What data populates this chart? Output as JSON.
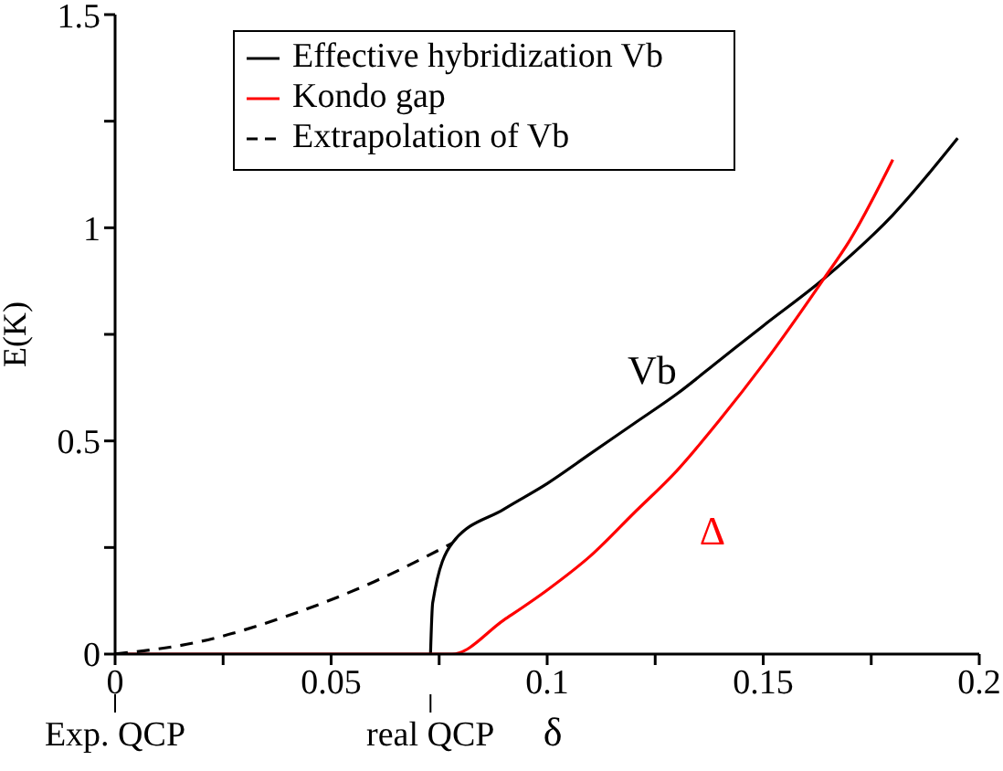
{
  "chart_data": {
    "type": "line",
    "xlabel": "δ",
    "ylabel": "E(K)",
    "xlim": [
      0,
      0.2
    ],
    "ylim": [
      0,
      1.5
    ],
    "xticks": [
      0,
      {
        "value": 0.025,
        "label": null
      },
      0.05,
      {
        "value": 0.075,
        "label": null
      },
      0.1,
      {
        "value": 0.125,
        "label": null
      },
      0.15,
      {
        "value": 0.175,
        "label": null
      },
      0.2
    ],
    "yticks": [
      0,
      {
        "value": 0.25,
        "label": null
      },
      0.5,
      {
        "value": 0.75,
        "label": null
      },
      1,
      {
        "value": 1.25,
        "label": null
      },
      1.5
    ],
    "grid": false,
    "legend": "top",
    "marker": "none",
    "series": [
      {
        "name": "Effective hybridization Vb",
        "color": "#000000",
        "line_style": "solid",
        "x": [
          0.073,
          0.0735,
          0.078,
          0.09,
          0.1,
          0.11,
          0.12,
          0.13,
          0.14,
          0.15,
          0.164,
          0.18,
          0.195
        ],
        "values": [
          0,
          0.12,
          0.26,
          0.34,
          0.4,
          0.47,
          0.54,
          0.61,
          0.69,
          0.77,
          0.88,
          1.03,
          1.21
        ]
      },
      {
        "name": "Kondo gap",
        "color": "#ff0000",
        "line_style": "solid",
        "x": [
          0,
          0.078,
          0.09,
          0.1,
          0.11,
          0.12,
          0.13,
          0.14,
          0.15,
          0.164,
          0.17,
          0.18
        ],
        "values": [
          0,
          0,
          0.08,
          0.15,
          0.23,
          0.33,
          0.43,
          0.55,
          0.68,
          0.88,
          0.97,
          1.16
        ]
      },
      {
        "name": "Extrapolation of Vb",
        "color": "#000000",
        "line_style": "dashed",
        "x": [
          0,
          0.02,
          0.04,
          0.06,
          0.078
        ],
        "values": [
          0,
          0.03,
          0.09,
          0.17,
          0.26
        ]
      }
    ],
    "annotations": [
      "Vb",
      "Δ",
      {
        "text": "Exp. QCP",
        "x": 0
      },
      {
        "text": "real QCP",
        "x": 0.073
      }
    ]
  }
}
